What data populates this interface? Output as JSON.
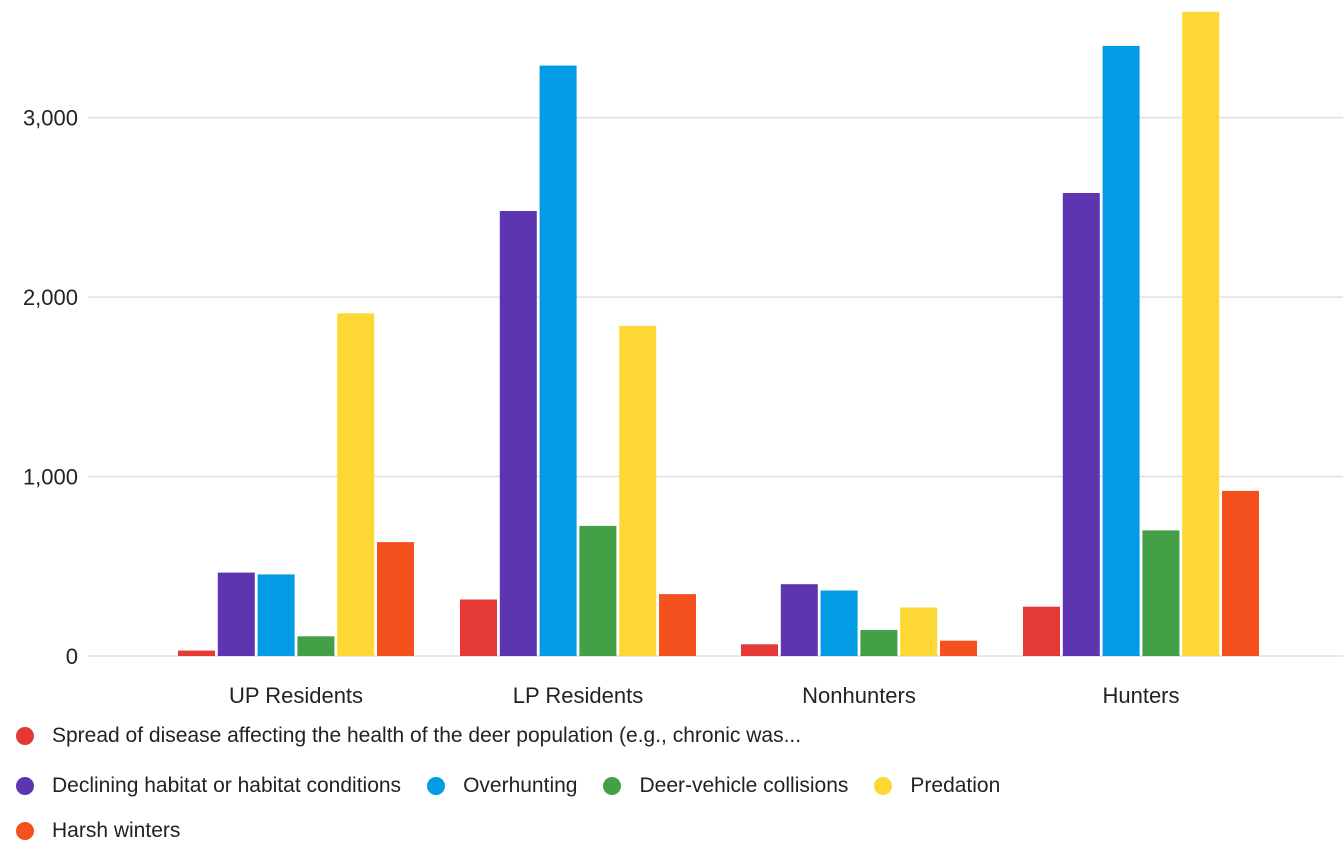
{
  "chart_data": {
    "type": "bar",
    "title": "",
    "xlabel": "",
    "ylabel": "",
    "ylim": [
      0,
      3600
    ],
    "yticks": [
      0,
      1000,
      2000,
      3000
    ],
    "ytick_labels": [
      "0",
      "1,000",
      "2,000",
      "3,000"
    ],
    "grid": true,
    "legend_position": "bottom",
    "categories": [
      "UP Residents",
      "LP Residents",
      "Nonhunters",
      "Hunters"
    ],
    "series": [
      {
        "name": "Spread of disease affecting the health of the deer population (e.g., chronic was...",
        "color": "#e53935",
        "values": [
          30,
          315,
          65,
          275
        ]
      },
      {
        "name": "Declining habitat or habitat conditions",
        "color": "#5e35b1",
        "values": [
          465,
          2480,
          400,
          2580
        ]
      },
      {
        "name": "Overhunting",
        "color": "#039be5",
        "values": [
          455,
          3290,
          365,
          3400
        ]
      },
      {
        "name": "Deer-vehicle collisions",
        "color": "#43a047",
        "values": [
          110,
          725,
          145,
          700
        ]
      },
      {
        "name": "Predation",
        "color": "#fdd835",
        "values": [
          1910,
          1840,
          270,
          3590
        ]
      },
      {
        "name": "Harsh winters",
        "color": "#f4511e",
        "values": [
          635,
          345,
          85,
          920
        ]
      }
    ]
  }
}
